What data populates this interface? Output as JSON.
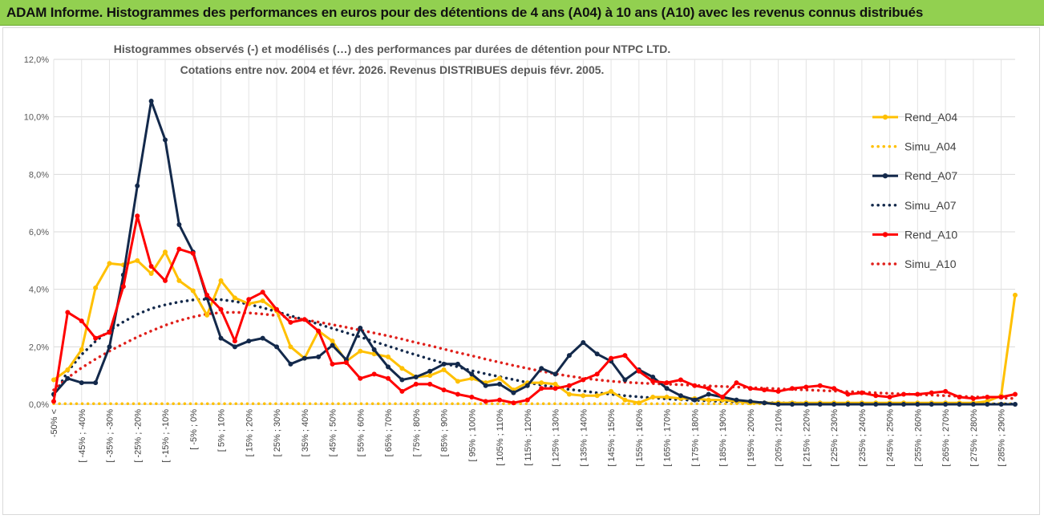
{
  "header": {
    "banner_title": "ADAM Informe. Histogrammes des performances en euros pour des détentions de 4 ans (A04) à 10 ans (A10) avec les revenus connus distribués",
    "banner_color": "#92d050"
  },
  "chart_data": {
    "type": "line",
    "title_line1": "Histogrammes observés (-) et modélisés (…) des performances par durées de détention pour NTPC LTD.",
    "title_line2": "Cotations entre nov. 2004 et févr. 2026. Revenus DISTRIBUES depuis févr. 2005.",
    "ylim": [
      0,
      12
    ],
    "y_ticks": [
      0,
      2,
      4,
      6,
      8,
      10,
      12
    ],
    "y_tick_labels": [
      "0,0%",
      "2,0%",
      "4,0%",
      "6,0%",
      "8,0%",
      "10,0%",
      "12,0%"
    ],
    "x_tick_labels": [
      "-50% <",
      "[ -45% ; -40%",
      "[ -35% ; -30%",
      "[ -25% ; -20%",
      "[ -15% ; -10%",
      "[ -5% ; 0%",
      "[ 5% ; 10%",
      "[ 15% ; 20%",
      "[ 25% ; 30%",
      "[ 35% ; 40%",
      "[ 45% ; 50%",
      "[ 55% ; 60%",
      "[ 65% ; 70%",
      "[ 75% ; 80%",
      "[ 85% ; 90%",
      "[ 95% ; 100%",
      "[ 105% ; 110%",
      "[ 115% ; 120%",
      "[ 125% ; 130%",
      "[ 135% ; 140%",
      "[ 145% ; 150%",
      "[ 155% ; 160%",
      "[ 165% ; 170%",
      "[ 175% ; 180%",
      "[ 185% ; 190%",
      "[ 195% ; 200%",
      "[ 205% ; 210%",
      "[ 215% ; 220%",
      "[ 225% ; 230%",
      "[ 235% ; 240%",
      "[ 245% ; 250%",
      "[ 255% ; 260%",
      "[ 265% ; 270%",
      "[ 275% ; 280%",
      "[ 285% ; 290%"
    ],
    "n_points": 70,
    "legend_position": "right",
    "series": [
      {
        "name": "Rend_A04",
        "style": "solid",
        "color": "#ffc000",
        "values": [
          0.85,
          1.2,
          1.9,
          4.05,
          4.9,
          4.85,
          5.0,
          4.55,
          5.3,
          4.3,
          3.95,
          3.1,
          4.3,
          3.7,
          3.5,
          3.6,
          3.25,
          2.0,
          1.6,
          2.55,
          2.2,
          1.5,
          1.85,
          1.75,
          1.65,
          1.25,
          0.95,
          1.0,
          1.2,
          0.8,
          0.9,
          0.75,
          0.9,
          0.5,
          0.75,
          0.75,
          0.7,
          0.35,
          0.3,
          0.3,
          0.45,
          0.15,
          0.05,
          0.25,
          0.25,
          0.2,
          0.2,
          0.15,
          0.15,
          0.1,
          0.05,
          0.05,
          0.05,
          0.05,
          0.05,
          0.05,
          0.05,
          0.05,
          0.05,
          0.05,
          0.05,
          0.05,
          0.05,
          0.05,
          0.05,
          0.05,
          0.05,
          0.1,
          0.3,
          3.8
        ]
      },
      {
        "name": "Simu_A04",
        "style": "dotted",
        "color": "#ffc000",
        "values": [
          0.02,
          0.02,
          0.02,
          0.02,
          0.02,
          0.02,
          0.02,
          0.02,
          0.02,
          0.02,
          0.02,
          0.02,
          0.02,
          0.02,
          0.02,
          0.02,
          0.02,
          0.02,
          0.02,
          0.02,
          0.02,
          0.02,
          0.02,
          0.02,
          0.02,
          0.02,
          0.02,
          0.02,
          0.02,
          0.02,
          0.02,
          0.02,
          0.02,
          0.02,
          0.02,
          0.02,
          0.02,
          0.02,
          0.02,
          0.02,
          0.02,
          0.02,
          0.02,
          0.02,
          0.02,
          0.02,
          0.02,
          0.02,
          0.02,
          0.02,
          0.02,
          0.02,
          0.02,
          0.02,
          0.02,
          0.02,
          0.02,
          0.02,
          0.02,
          0.02,
          0.02,
          0.02,
          0.02,
          0.02,
          0.02,
          0.02,
          0.02,
          0.02,
          0.02,
          0.02
        ]
      },
      {
        "name": "Rend_A07",
        "style": "solid",
        "color": "#13294b",
        "values": [
          0.35,
          0.9,
          0.75,
          0.75,
          2.0,
          4.5,
          7.6,
          10.55,
          9.2,
          6.25,
          5.3,
          3.7,
          2.3,
          2.0,
          2.2,
          2.3,
          2.0,
          1.4,
          1.6,
          1.65,
          2.05,
          1.55,
          2.65,
          1.9,
          1.3,
          0.85,
          0.95,
          1.15,
          1.4,
          1.4,
          1.05,
          0.65,
          0.7,
          0.4,
          0.65,
          1.25,
          1.05,
          1.7,
          2.15,
          1.75,
          1.5,
          0.85,
          1.2,
          0.95,
          0.55,
          0.3,
          0.15,
          0.35,
          0.25,
          0.15,
          0.1,
          0.05,
          0.0,
          0.0,
          0.0,
          0.0,
          0.0,
          0.0,
          0.0,
          0.0,
          0.0,
          0.0,
          0.0,
          0.0,
          0.0,
          0.0,
          0.0,
          0.0,
          0.0,
          0.0
        ]
      },
      {
        "name": "Simu_A07",
        "style": "dotted",
        "color": "#13294b",
        "values": [
          0.3,
          1.14,
          1.73,
          2.19,
          2.57,
          2.87,
          3.13,
          3.33,
          3.46,
          3.56,
          3.63,
          3.66,
          3.64,
          3.58,
          3.48,
          3.36,
          3.22,
          3.08,
          2.94,
          2.79,
          2.64,
          2.49,
          2.34,
          2.18,
          2.03,
          1.87,
          1.72,
          1.57,
          1.43,
          1.3,
          1.17,
          1.06,
          0.96,
          0.86,
          0.76,
          0.67,
          0.59,
          0.52,
          0.46,
          0.4,
          0.35,
          0.3,
          0.26,
          0.22,
          0.19,
          0.16,
          0.14,
          0.12,
          0.1,
          0.09,
          0.07,
          0.06,
          0.05,
          0.05,
          0.04,
          0.03,
          0.03,
          0.02,
          0.02,
          0.02,
          0.01,
          0.01,
          0.01,
          0.01,
          0.01,
          0.01,
          0.01,
          0.01,
          0.01,
          0.01
        ]
      },
      {
        "name": "Rend_A10",
        "style": "solid",
        "color": "#ff0000",
        "values": [
          0.1,
          3.2,
          2.9,
          2.3,
          2.5,
          4.1,
          6.55,
          4.8,
          4.3,
          5.4,
          5.25,
          3.8,
          3.3,
          2.2,
          3.65,
          3.9,
          3.3,
          2.85,
          2.95,
          2.55,
          1.4,
          1.45,
          0.9,
          1.05,
          0.9,
          0.45,
          0.7,
          0.7,
          0.5,
          0.35,
          0.25,
          0.1,
          0.15,
          0.05,
          0.15,
          0.55,
          0.55,
          0.65,
          0.85,
          1.05,
          1.6,
          1.7,
          1.15,
          0.8,
          0.75,
          0.85,
          0.65,
          0.55,
          0.25,
          0.75,
          0.55,
          0.5,
          0.45,
          0.55,
          0.6,
          0.65,
          0.55,
          0.35,
          0.4,
          0.3,
          0.25,
          0.35,
          0.35,
          0.4,
          0.45,
          0.25,
          0.2,
          0.25,
          0.25,
          0.35
        ]
      },
      {
        "name": "Simu_A10",
        "style": "dotted",
        "color": "#e0201b",
        "values": [
          0.5,
          0.92,
          1.27,
          1.57,
          1.85,
          2.1,
          2.34,
          2.55,
          2.75,
          2.91,
          3.04,
          3.14,
          3.19,
          3.2,
          3.18,
          3.14,
          3.09,
          3.02,
          2.94,
          2.86,
          2.77,
          2.68,
          2.58,
          2.48,
          2.38,
          2.27,
          2.15,
          2.04,
          1.92,
          1.8,
          1.69,
          1.57,
          1.46,
          1.35,
          1.25,
          1.15,
          1.06,
          0.98,
          0.91,
          0.85,
          0.8,
          0.77,
          0.74,
          0.72,
          0.7,
          0.68,
          0.66,
          0.64,
          0.62,
          0.6,
          0.58,
          0.56,
          0.54,
          0.52,
          0.5,
          0.48,
          0.46,
          0.44,
          0.42,
          0.4,
          0.38,
          0.36,
          0.34,
          0.32,
          0.3,
          0.28,
          0.26,
          0.24,
          0.22,
          0.2
        ]
      }
    ]
  }
}
